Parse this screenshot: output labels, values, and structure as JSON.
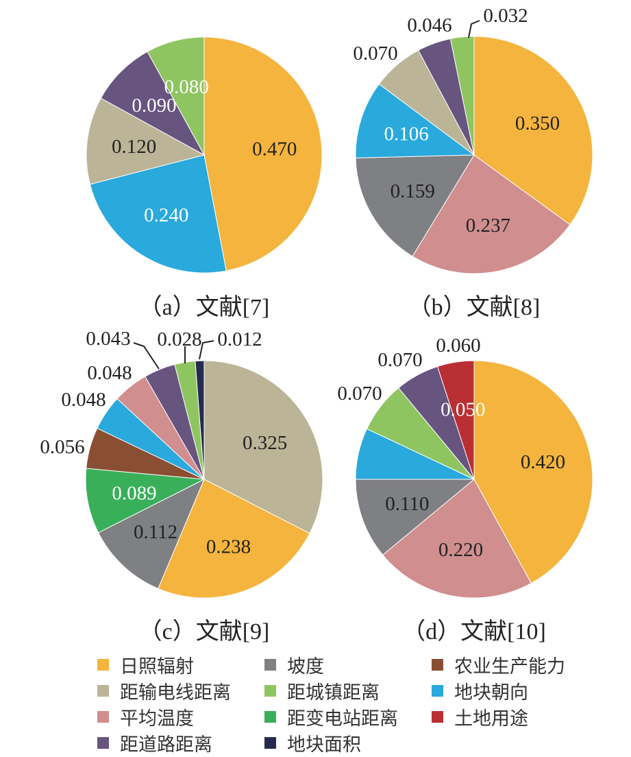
{
  "colors": {
    "日照辐射": "#f4b43d",
    "距输电线距离": "#bbb497",
    "平均温度": "#d08e8f",
    "距道路距离": "#67547f",
    "坡度": "#7f8083",
    "距城镇距离": "#8fc561",
    "距变电站距离": "#3aaf5a",
    "地块面积": "#262a4e",
    "农业生产能力": "#8a4f33",
    "地块朝向": "#29a9dc",
    "土地用途": "#b92f34"
  },
  "captions": {
    "a": "（a）文献[7]",
    "b": "（b）文献[8]",
    "c": "（c）文献[9]",
    "d": "（d）文献[10]"
  },
  "legend": [
    "日照辐射",
    "距输电线距离",
    "平均温度",
    "距道路距离",
    "坡度",
    "距城镇距离",
    "距变电站距离",
    "地块面积",
    "农业生产能力",
    "地块朝向",
    "土地用途"
  ],
  "chart_data": [
    {
      "type": "pie",
      "title": "（a）文献[7]",
      "slices": [
        {
          "category": "日照辐射",
          "value": 0.47,
          "label": "0.470"
        },
        {
          "category": "地块朝向",
          "value": 0.24,
          "label": "0.240"
        },
        {
          "category": "距输电线距离",
          "value": 0.12,
          "label": "0.120"
        },
        {
          "category": "距道路距离",
          "value": 0.09,
          "label": "0.090"
        },
        {
          "category": "距城镇距离",
          "value": 0.08,
          "label": "0.080"
        }
      ]
    },
    {
      "type": "pie",
      "title": "（b）文献[8]",
      "slices": [
        {
          "category": "日照辐射",
          "value": 0.35,
          "label": "0.350"
        },
        {
          "category": "平均温度",
          "value": 0.237,
          "label": "0.237"
        },
        {
          "category": "坡度",
          "value": 0.159,
          "label": "0.159"
        },
        {
          "category": "地块朝向",
          "value": 0.106,
          "label": "0.106"
        },
        {
          "category": "距输电线距离",
          "value": 0.07,
          "label": "0.070"
        },
        {
          "category": "距道路距离",
          "value": 0.046,
          "label": "0.046"
        },
        {
          "category": "距城镇距离",
          "value": 0.032,
          "label": "0.032"
        }
      ]
    },
    {
      "type": "pie",
      "title": "（c）文献[9]",
      "slices": [
        {
          "category": "距输电线距离",
          "value": 0.325,
          "label": "0.325"
        },
        {
          "category": "日照辐射",
          "value": 0.238,
          "label": "0.238"
        },
        {
          "category": "坡度",
          "value": 0.112,
          "label": "0.112"
        },
        {
          "category": "距变电站距离",
          "value": 0.089,
          "label": "0.089"
        },
        {
          "category": "农业生产能力",
          "value": 0.056,
          "label": "0.056"
        },
        {
          "category": "地块朝向",
          "value": 0.048,
          "label": "0.048"
        },
        {
          "category": "平均温度",
          "value": 0.048,
          "label": "0.048"
        },
        {
          "category": "距道路距离",
          "value": 0.043,
          "label": "0.043"
        },
        {
          "category": "距城镇距离",
          "value": 0.028,
          "label": "0.028"
        },
        {
          "category": "地块面积",
          "value": 0.012,
          "label": "0.012"
        }
      ]
    },
    {
      "type": "pie",
      "title": "（d）文献[10]",
      "slices": [
        {
          "category": "日照辐射",
          "value": 0.42,
          "label": "0.420"
        },
        {
          "category": "平均温度",
          "value": 0.22,
          "label": "0.220"
        },
        {
          "category": "坡度",
          "value": 0.11,
          "label": "0.110"
        },
        {
          "category": "地块朝向",
          "value": 0.07,
          "label": "0.070"
        },
        {
          "category": "距城镇距离",
          "value": 0.07,
          "label": "0.070"
        },
        {
          "category": "距道路距离",
          "value": 0.06,
          "label": "0.060"
        },
        {
          "category": "土地用途",
          "value": 0.05,
          "label": "0.050"
        }
      ]
    }
  ]
}
